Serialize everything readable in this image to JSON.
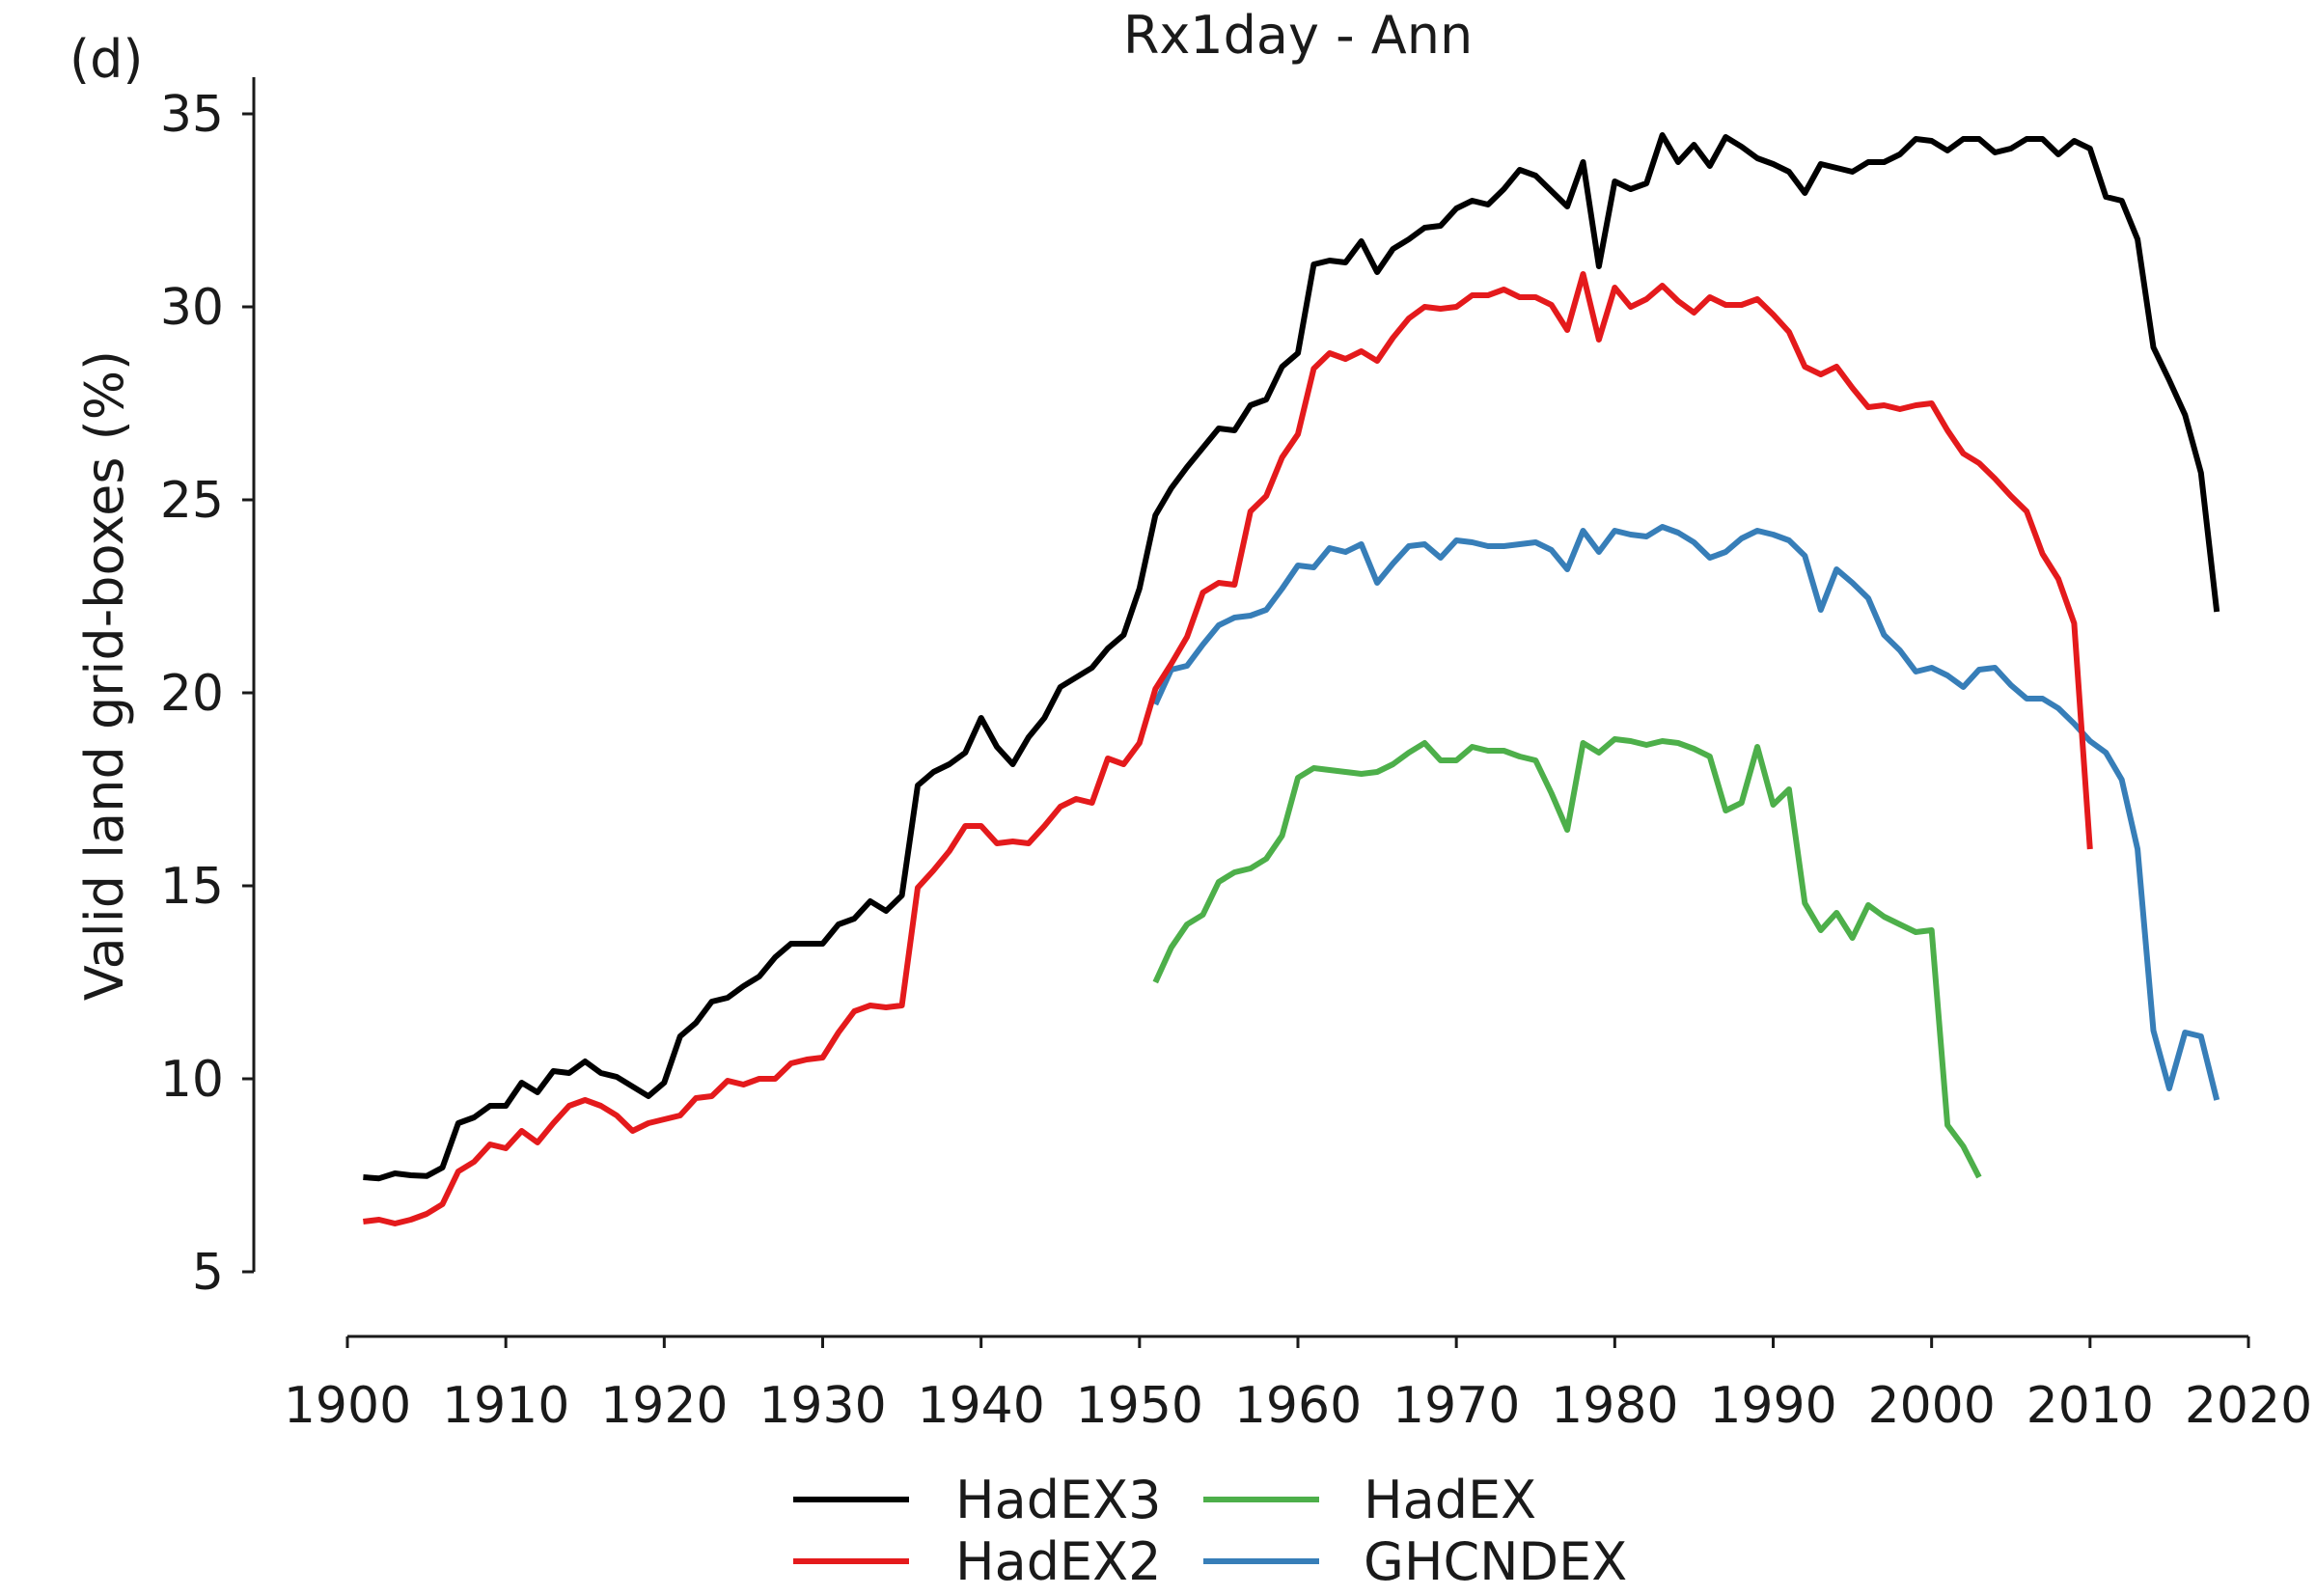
{
  "chart_data": {
    "type": "line",
    "panel_label": "(d)",
    "title": "Rx1day - Ann",
    "xlabel": "",
    "ylabel": "Valid land grid-boxes (%)",
    "xlim": [
      1900,
      2020
    ],
    "ylim": [
      5,
      35
    ],
    "xticks": [
      1900,
      1910,
      1920,
      1930,
      1940,
      1950,
      1960,
      1970,
      1980,
      1990,
      2000,
      2010,
      2020
    ],
    "yticks": [
      5,
      10,
      15,
      20,
      25,
      30,
      35
    ],
    "grid": false,
    "legend_position": "bottom",
    "series": [
      {
        "name": "HadEX3",
        "color": "#000000",
        "x": [
          1901,
          1902,
          1903,
          1904,
          1905,
          1906,
          1907,
          1908,
          1909,
          1910,
          1911,
          1912,
          1913,
          1914,
          1915,
          1916,
          1917,
          1918,
          1919,
          1920,
          1921,
          1922,
          1923,
          1924,
          1925,
          1926,
          1927,
          1928,
          1929,
          1930,
          1931,
          1932,
          1933,
          1934,
          1935,
          1936,
          1937,
          1938,
          1939,
          1940,
          1941,
          1942,
          1943,
          1944,
          1945,
          1946,
          1947,
          1948,
          1949,
          1950,
          1951,
          1952,
          1953,
          1954,
          1955,
          1956,
          1957,
          1958,
          1959,
          1960,
          1961,
          1962,
          1963,
          1964,
          1965,
          1966,
          1967,
          1968,
          1969,
          1970,
          1971,
          1972,
          1973,
          1974,
          1975,
          1976,
          1977,
          1978,
          1979,
          1980,
          1981,
          1982,
          1983,
          1984,
          1985,
          1986,
          1987,
          1988,
          1989,
          1990,
          1991,
          1992,
          1993,
          1994,
          1995,
          1996,
          1997,
          1998,
          1999,
          2000,
          2001,
          2002,
          2003,
          2004,
          2005,
          2006,
          2007,
          2008,
          2009,
          2010,
          2011,
          2012,
          2013,
          2014,
          2015,
          2016,
          2017,
          2018
        ],
        "y": [
          7.45,
          7.42,
          7.55,
          7.5,
          7.48,
          7.7,
          8.85,
          9.0,
          9.3,
          9.3,
          9.9,
          9.65,
          10.2,
          10.15,
          10.45,
          10.15,
          10.05,
          9.8,
          9.55,
          9.9,
          11.1,
          11.45,
          12.0,
          12.1,
          12.4,
          12.65,
          13.15,
          13.5,
          13.5,
          13.5,
          14.0,
          14.15,
          14.6,
          14.35,
          14.75,
          17.6,
          17.95,
          18.15,
          18.45,
          19.35,
          18.6,
          18.15,
          18.85,
          19.35,
          20.15,
          20.4,
          20.65,
          21.15,
          21.5,
          22.7,
          24.6,
          25.3,
          25.85,
          26.35,
          26.85,
          26.8,
          27.45,
          27.6,
          28.45,
          28.8,
          31.1,
          31.2,
          31.15,
          31.7,
          30.9,
          31.5,
          31.75,
          32.05,
          32.1,
          32.55,
          32.75,
          32.65,
          33.05,
          33.55,
          33.4,
          33.0,
          32.6,
          33.75,
          31.05,
          33.25,
          33.05,
          33.2,
          34.45,
          33.75,
          34.2,
          33.65,
          34.4,
          34.15,
          33.85,
          33.7,
          33.5,
          32.95,
          33.7,
          33.6,
          33.5,
          33.75,
          33.75,
          33.95,
          34.35,
          34.3,
          34.05,
          34.35,
          34.35,
          34.0,
          34.1,
          34.35,
          34.35,
          33.95,
          34.3,
          34.1,
          32.85,
          32.75,
          31.75,
          28.95,
          28.1,
          27.2,
          25.7,
          22.1
        ]
      },
      {
        "name": "HadEX2",
        "color": "#e41a1c",
        "x": [
          1901,
          1902,
          1903,
          1904,
          1905,
          1906,
          1907,
          1908,
          1909,
          1910,
          1911,
          1912,
          1913,
          1914,
          1915,
          1916,
          1917,
          1918,
          1919,
          1920,
          1921,
          1922,
          1923,
          1924,
          1925,
          1926,
          1927,
          1928,
          1929,
          1930,
          1931,
          1932,
          1933,
          1934,
          1935,
          1936,
          1937,
          1938,
          1939,
          1940,
          1941,
          1942,
          1943,
          1944,
          1945,
          1946,
          1947,
          1948,
          1949,
          1950,
          1951,
          1952,
          1953,
          1954,
          1955,
          1956,
          1957,
          1958,
          1959,
          1960,
          1961,
          1962,
          1963,
          1964,
          1965,
          1966,
          1967,
          1968,
          1969,
          1970,
          1971,
          1972,
          1973,
          1974,
          1975,
          1976,
          1977,
          1978,
          1979,
          1980,
          1981,
          1982,
          1983,
          1984,
          1985,
          1986,
          1987,
          1988,
          1989,
          1990,
          1991,
          1992,
          1993,
          1994,
          1995,
          1996,
          1997,
          1998,
          1999,
          2000,
          2001,
          2002,
          2003,
          2004,
          2005,
          2006,
          2007,
          2008,
          2009,
          2010
        ],
        "y": [
          6.3,
          6.35,
          6.25,
          6.35,
          6.5,
          6.75,
          7.6,
          7.85,
          8.3,
          8.2,
          8.65,
          8.35,
          8.85,
          9.3,
          9.45,
          9.3,
          9.05,
          8.65,
          8.85,
          8.95,
          9.05,
          9.5,
          9.55,
          9.95,
          9.85,
          10.0,
          10.0,
          10.4,
          10.5,
          10.55,
          11.2,
          11.75,
          11.9,
          11.85,
          11.9,
          14.95,
          15.4,
          15.9,
          16.55,
          16.55,
          16.1,
          16.15,
          16.1,
          16.55,
          17.05,
          17.25,
          17.15,
          18.3,
          18.15,
          18.7,
          20.1,
          20.75,
          21.45,
          22.6,
          22.85,
          22.8,
          24.7,
          25.1,
          26.1,
          26.7,
          28.4,
          28.8,
          28.65,
          28.85,
          28.6,
          29.2,
          29.7,
          30.0,
          29.95,
          30.0,
          30.3,
          30.3,
          30.45,
          30.25,
          30.25,
          30.05,
          29.4,
          30.85,
          29.15,
          30.5,
          30.0,
          30.2,
          30.55,
          30.15,
          29.85,
          30.25,
          30.05,
          30.05,
          30.2,
          29.8,
          29.35,
          28.45,
          28.25,
          28.45,
          27.9,
          27.4,
          27.45,
          27.35,
          27.45,
          27.5,
          26.8,
          26.2,
          25.95,
          25.55,
          25.1,
          24.7,
          23.6,
          22.95,
          21.8,
          15.95
        ]
      },
      {
        "name": "HadEX",
        "color": "#4daf4a",
        "x": [
          1951,
          1952,
          1953,
          1954,
          1955,
          1956,
          1957,
          1958,
          1959,
          1960,
          1961,
          1962,
          1963,
          1964,
          1965,
          1966,
          1967,
          1968,
          1969,
          1970,
          1971,
          1972,
          1973,
          1974,
          1975,
          1976,
          1977,
          1978,
          1979,
          1980,
          1981,
          1982,
          1983,
          1984,
          1985,
          1986,
          1987,
          1988,
          1989,
          1990,
          1991,
          1992,
          1993,
          1994,
          1995,
          1996,
          1997,
          1998,
          1999,
          2000,
          2001,
          2002,
          2003
        ],
        "y": [
          12.5,
          13.4,
          14.0,
          14.25,
          15.1,
          15.35,
          15.45,
          15.7,
          16.3,
          17.8,
          18.05,
          18.0,
          17.95,
          17.9,
          17.95,
          18.15,
          18.45,
          18.7,
          18.25,
          18.25,
          18.6,
          18.5,
          18.5,
          18.35,
          18.25,
          17.4,
          16.45,
          18.7,
          18.45,
          18.8,
          18.75,
          18.65,
          18.75,
          18.7,
          18.55,
          18.35,
          16.95,
          17.15,
          18.6,
          17.1,
          17.5,
          14.55,
          13.85,
          14.3,
          13.65,
          14.5,
          14.2,
          14.0,
          13.8,
          13.85,
          8.8,
          8.25,
          7.45
        ]
      },
      {
        "name": "GHCNDEX",
        "color": "#377eb8",
        "x": [
          1951,
          1952,
          1953,
          1954,
          1955,
          1956,
          1957,
          1958,
          1959,
          1960,
          1961,
          1962,
          1963,
          1964,
          1965,
          1966,
          1967,
          1968,
          1969,
          1970,
          1971,
          1972,
          1973,
          1974,
          1975,
          1976,
          1977,
          1978,
          1979,
          1980,
          1981,
          1982,
          1983,
          1984,
          1985,
          1986,
          1987,
          1988,
          1989,
          1990,
          1991,
          1992,
          1993,
          1994,
          1995,
          1996,
          1997,
          1998,
          1999,
          2000,
          2001,
          2002,
          2003,
          2004,
          2005,
          2006,
          2007,
          2008,
          2009,
          2010,
          2011,
          2012,
          2013,
          2014,
          2015,
          2016,
          2017,
          2018
        ],
        "y": [
          19.7,
          20.6,
          20.7,
          21.25,
          21.75,
          21.95,
          22.0,
          22.15,
          22.7,
          23.3,
          23.25,
          23.75,
          23.65,
          23.85,
          22.85,
          23.35,
          23.8,
          23.85,
          23.5,
          23.95,
          23.9,
          23.8,
          23.8,
          23.85,
          23.9,
          23.7,
          23.2,
          24.2,
          23.65,
          24.2,
          24.1,
          24.05,
          24.3,
          24.15,
          23.9,
          23.5,
          23.65,
          24.0,
          24.2,
          24.1,
          23.95,
          23.55,
          22.15,
          23.2,
          22.85,
          22.45,
          21.5,
          21.1,
          20.55,
          20.65,
          20.45,
          20.15,
          20.6,
          20.65,
          20.2,
          19.85,
          19.85,
          19.6,
          19.2,
          18.75,
          18.45,
          17.75,
          15.95,
          11.25,
          9.75,
          11.2,
          11.1,
          9.45
        ]
      }
    ]
  }
}
